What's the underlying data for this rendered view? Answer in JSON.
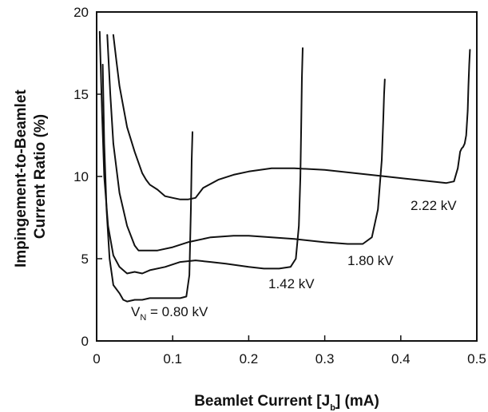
{
  "chart_data": {
    "type": "line",
    "title": "",
    "xlabel_parts": [
      "Beamlet Current [J",
      "b",
      "] (mA)"
    ],
    "ylabel_lines": [
      "Impingement-to-Beamlet",
      "Current Ratio (%)"
    ],
    "xlim": [
      0,
      0.5
    ],
    "ylim": [
      0,
      20
    ],
    "xticks": [
      0,
      0.1,
      0.2,
      0.3,
      0.4,
      0.5
    ],
    "xtick_labels": [
      "0",
      "0.1",
      "0.2",
      "0.3",
      "0.4",
      "0.5"
    ],
    "yticks": [
      0,
      5,
      10,
      15,
      20
    ],
    "ytick_labels": [
      "0",
      "5",
      "10",
      "15",
      "20"
    ],
    "grid": false,
    "legend": "none",
    "series": [
      {
        "label_parts": [
          "V",
          "N",
          " = 0.80 kV"
        ],
        "x": [
          0.008,
          0.01,
          0.013,
          0.017,
          0.022,
          0.03,
          0.035,
          0.04,
          0.05,
          0.06,
          0.07,
          0.08,
          0.09,
          0.1,
          0.11,
          0.118,
          0.122,
          0.124,
          0.125,
          0.126
        ],
        "y": [
          16.8,
          12,
          8,
          5,
          3.4,
          2.9,
          2.5,
          2.4,
          2.5,
          2.5,
          2.6,
          2.6,
          2.6,
          2.6,
          2.6,
          2.7,
          4,
          8,
          11,
          12.7
        ]
      },
      {
        "label_parts": [
          "",
          "",
          "1.42 kV"
        ],
        "x": [
          0.004,
          0.007,
          0.01,
          0.015,
          0.022,
          0.03,
          0.035,
          0.04,
          0.05,
          0.06,
          0.07,
          0.09,
          0.11,
          0.13,
          0.15,
          0.17,
          0.2,
          0.22,
          0.24,
          0.255,
          0.262,
          0.266,
          0.268,
          0.269,
          0.27,
          0.271
        ],
        "y": [
          18.8,
          14,
          10,
          7,
          5.2,
          4.5,
          4.3,
          4.1,
          4.2,
          4.1,
          4.3,
          4.5,
          4.8,
          4.9,
          4.8,
          4.7,
          4.5,
          4.4,
          4.4,
          4.5,
          5,
          7,
          10,
          13,
          16,
          17.8
        ]
      },
      {
        "label_parts": [
          "",
          "",
          "1.80 kV"
        ],
        "x": [
          0.014,
          0.018,
          0.022,
          0.03,
          0.04,
          0.05,
          0.055,
          0.06,
          0.07,
          0.08,
          0.1,
          0.12,
          0.15,
          0.18,
          0.2,
          0.23,
          0.26,
          0.3,
          0.33,
          0.35,
          0.362,
          0.37,
          0.375,
          0.377,
          0.378,
          0.379
        ],
        "y": [
          18.6,
          15,
          12,
          9,
          7,
          5.8,
          5.5,
          5.5,
          5.5,
          5.5,
          5.7,
          6,
          6.3,
          6.4,
          6.4,
          6.3,
          6.2,
          6,
          5.9,
          5.9,
          6.3,
          8,
          11,
          13.5,
          15,
          15.9
        ]
      },
      {
        "label_parts": [
          "",
          "",
          "2.22 kV"
        ],
        "x": [
          0.022,
          0.026,
          0.03,
          0.04,
          0.05,
          0.06,
          0.065,
          0.07,
          0.08,
          0.09,
          0.1,
          0.11,
          0.12,
          0.13,
          0.14,
          0.16,
          0.18,
          0.2,
          0.23,
          0.26,
          0.3,
          0.34,
          0.38,
          0.42,
          0.46,
          0.47,
          0.475,
          0.478,
          0.48,
          0.482,
          0.484,
          0.486,
          0.488,
          0.489,
          0.49,
          0.491
        ],
        "y": [
          18.6,
          17,
          15.5,
          13,
          11.5,
          10.2,
          9.8,
          9.5,
          9.2,
          8.8,
          8.7,
          8.6,
          8.6,
          8.7,
          9.3,
          9.8,
          10.1,
          10.3,
          10.5,
          10.5,
          10.4,
          10.2,
          10,
          9.8,
          9.6,
          9.7,
          10.5,
          11.5,
          11.7,
          11.8,
          12,
          12.5,
          14,
          15.5,
          16.8,
          17.7
        ]
      }
    ]
  }
}
